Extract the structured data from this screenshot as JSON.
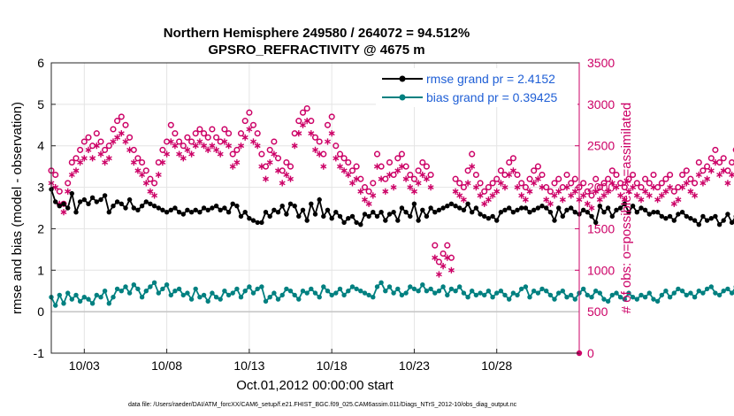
{
  "chart_data": {
    "type": "line",
    "title_line1": "Northern Hemisphere 249580 / 264072 = 94.512%",
    "title_line2": "GPSRO_REFRACTIVITY @ 4675 m",
    "xlabel": "Oct.01,2012 00:00:00 start",
    "ylabel": "rmse and bias (model - observation)",
    "ylabel_right": "# of obs: o=possible; ∗=assimilated",
    "footnote": "data file: /Users/raeder/DAI/ATM_forcXX/CAM6_setup/f.e21.FHIST_BGC.f09_025.CAM6assim.011/Diags_NTrS_2012-10/obs_diag_output.nc",
    "x_ticks": [
      "10/03",
      "10/08",
      "10/13",
      "10/18",
      "10/23",
      "10/28"
    ],
    "x_tick_days": [
      3,
      8,
      13,
      18,
      23,
      28
    ],
    "xlim_days": [
      1,
      33
    ],
    "ylim": [
      -1,
      6
    ],
    "y_ticks": [
      "-1",
      "0",
      "1",
      "2",
      "3",
      "4",
      "5",
      "6"
    ],
    "y_tick_values": [
      -1,
      0,
      1,
      2,
      3,
      4,
      5,
      6
    ],
    "ylim_right": [
      0,
      3500
    ],
    "y_ticks_right": [
      "0",
      "500",
      "1000",
      "1500",
      "2000",
      "2500",
      "3000",
      "3500"
    ],
    "y_tick_values_right": [
      0,
      500,
      1000,
      1500,
      2000,
      2500,
      3000,
      3500
    ],
    "grid": true,
    "legend_position": "top-right",
    "zero_line": 0,
    "x_start_day": 1.0,
    "x_step_days": 0.25,
    "series": [
      {
        "name": "rmse grand pr = 2.4152",
        "axis": "left",
        "color": "#000000",
        "marker": "circle",
        "values": [
          2.95,
          2.65,
          2.55,
          2.6,
          2.5,
          2.85,
          2.4,
          2.65,
          2.7,
          2.6,
          2.75,
          2.65,
          2.7,
          2.8,
          2.4,
          2.55,
          2.65,
          2.6,
          2.5,
          2.7,
          2.5,
          2.45,
          2.55,
          2.65,
          2.6,
          2.55,
          2.5,
          2.45,
          2.4,
          2.45,
          2.5,
          2.4,
          2.35,
          2.45,
          2.4,
          2.45,
          2.4,
          2.5,
          2.45,
          2.5,
          2.55,
          2.45,
          2.5,
          2.4,
          2.6,
          2.55,
          2.3,
          2.4,
          2.25,
          2.2,
          2.15,
          2.15,
          2.4,
          2.3,
          2.45,
          2.4,
          2.55,
          2.35,
          2.6,
          2.55,
          2.3,
          2.45,
          2.2,
          2.6,
          2.35,
          2.7,
          2.3,
          2.45,
          2.25,
          2.4,
          2.3,
          2.15,
          2.25,
          2.3,
          2.15,
          2.1,
          2.35,
          2.3,
          2.4,
          2.3,
          2.4,
          2.2,
          2.35,
          2.4,
          2.2,
          2.5,
          2.4,
          2.3,
          2.6,
          2.2,
          2.45,
          2.3,
          2.5,
          2.4,
          2.45,
          2.5,
          2.55,
          2.6,
          2.55,
          2.5,
          2.45,
          2.6,
          2.4,
          2.5,
          2.35,
          2.3,
          2.25,
          2.3,
          2.2,
          2.4,
          2.45,
          2.5,
          2.4,
          2.45,
          2.5,
          2.5,
          2.4,
          2.45,
          2.5,
          2.55,
          2.5,
          2.4,
          2.2,
          2.5,
          2.3,
          2.45,
          2.5,
          2.4,
          2.35,
          2.45,
          2.4,
          2.3,
          2.15,
          2.55,
          2.4,
          2.5,
          2.3,
          2.45,
          2.5,
          2.6,
          2.4,
          2.55,
          2.4,
          2.5,
          2.45,
          2.35,
          2.4,
          2.4,
          2.3,
          2.25,
          2.3,
          2.2,
          2.35,
          2.4,
          2.3,
          2.25,
          2.2,
          2.1,
          2.3,
          2.2,
          2.25,
          2.3,
          2.1,
          2.2,
          2.35,
          2.15,
          2.3,
          2.35,
          2.45,
          2.3,
          2.15,
          2.55,
          2.35,
          2.4,
          2.3,
          2.3,
          2.2,
          2.35,
          2.15,
          2.4,
          2.2,
          2.3,
          2.1,
          3.1,
          2.55,
          2.15,
          2.65,
          2.3,
          2.1
        ]
      },
      {
        "name": "bias grand pr = 0.39425",
        "axis": "left",
        "color": "#008080",
        "marker": "circle",
        "values": [
          0.35,
          0.15,
          0.4,
          0.2,
          0.45,
          0.3,
          0.4,
          0.25,
          0.35,
          0.3,
          0.2,
          0.4,
          0.35,
          0.5,
          0.2,
          0.35,
          0.55,
          0.5,
          0.6,
          0.45,
          0.65,
          0.55,
          0.35,
          0.5,
          0.6,
          0.7,
          0.45,
          0.55,
          0.65,
          0.4,
          0.5,
          0.55,
          0.4,
          0.45,
          0.3,
          0.55,
          0.35,
          0.4,
          0.25,
          0.45,
          0.35,
          0.3,
          0.5,
          0.4,
          0.45,
          0.55,
          0.35,
          0.5,
          0.6,
          0.45,
          0.55,
          0.6,
          0.25,
          0.35,
          0.45,
          0.3,
          0.4,
          0.55,
          0.5,
          0.4,
          0.3,
          0.5,
          0.45,
          0.55,
          0.45,
          0.35,
          0.6,
          0.5,
          0.4,
          0.45,
          0.55,
          0.4,
          0.5,
          0.6,
          0.55,
          0.5,
          0.45,
          0.4,
          0.35,
          0.6,
          0.7,
          0.5,
          0.6,
          0.45,
          0.55,
          0.4,
          0.45,
          0.6,
          0.55,
          0.5,
          0.65,
          0.5,
          0.55,
          0.45,
          0.5,
          0.6,
          0.4,
          0.55,
          0.5,
          0.6,
          0.45,
          0.35,
          0.5,
          0.4,
          0.45,
          0.4,
          0.5,
          0.35,
          0.45,
          0.5,
          0.4,
          0.3,
          0.45,
          0.4,
          0.55,
          0.6,
          0.35,
          0.5,
          0.45,
          0.55,
          0.5,
          0.4,
          0.3,
          0.45,
          0.5,
          0.35,
          0.4,
          0.3,
          0.45,
          0.55,
          0.4,
          0.35,
          0.5,
          0.45,
          0.3,
          0.25,
          0.4,
          0.45,
          0.35,
          0.3,
          0.45,
          0.35,
          0.3,
          0.4,
          0.35,
          0.45,
          0.3,
          0.25,
          0.4,
          0.5,
          0.35,
          0.45,
          0.55,
          0.5,
          0.4,
          0.45,
          0.35,
          0.5,
          0.45,
          0.55,
          0.6,
          0.45,
          0.4,
          0.5,
          0.55,
          0.45,
          0.6,
          0.5,
          0.45,
          0.55,
          0.6,
          0.4,
          0.5,
          0.55,
          0.45,
          0.5,
          0.6,
          0.55,
          0.4,
          0.5,
          0.45,
          0.55,
          0.6
        ]
      },
      {
        "name": "possible",
        "axis": "right",
        "color": "#cc0066",
        "marker": "open-circle",
        "values": [
          2200,
          2150,
          1950,
          1800,
          2050,
          2300,
          2350,
          2450,
          2550,
          2600,
          2500,
          2650,
          2550,
          2450,
          2500,
          2700,
          2800,
          2850,
          2750,
          2600,
          2450,
          2350,
          2300,
          2200,
          2100,
          2050,
          2300,
          2450,
          2550,
          2750,
          2650,
          2550,
          2500,
          2600,
          2550,
          2650,
          2700,
          2650,
          2600,
          2700,
          2600,
          2550,
          2700,
          2650,
          2400,
          2450,
          2650,
          2800,
          2900,
          2750,
          2650,
          2400,
          2250,
          2450,
          2550,
          2350,
          2200,
          2300,
          2250,
          2650,
          2800,
          2900,
          2950,
          2800,
          2600,
          2550,
          2400,
          2750,
          2850,
          2500,
          2400,
          2350,
          2300,
          2200,
          2250,
          2100,
          2000,
          1950,
          2050,
          2400,
          2250,
          2100,
          2300,
          2150,
          2350,
          2400,
          2250,
          2150,
          2100,
          2200,
          2300,
          2250,
          2150,
          1300,
          1100,
          1200,
          1300,
          1150,
          2100,
          2050,
          2000,
          2200,
          2400,
          2150,
          2050,
          1950,
          2000,
          2050,
          2100,
          2200,
          2150,
          2300,
          2350,
          2150,
          2050,
          2000,
          2100,
          2200,
          2250,
          2150,
          2000,
          1950,
          2050,
          2100,
          2000,
          2150,
          2050,
          2100,
          2000,
          2050,
          1950,
          1900,
          2100,
          2000,
          2050,
          2100,
          2200,
          2150,
          2050,
          2000,
          2100,
          2150,
          2050,
          2000,
          2100,
          2050,
          2150,
          2000,
          2050,
          2100,
          2150,
          1950,
          2000,
          2150,
          2200,
          2100,
          2050,
          2300,
          2200,
          2250,
          2350,
          2450,
          2300,
          2350,
          2200,
          2300,
          2450,
          2550,
          2600,
          2650,
          2500,
          2450,
          2600,
          2650,
          2550,
          2700,
          2750,
          2900,
          2850,
          2700,
          2600,
          2800,
          2750,
          2650,
          2600,
          2700
        ]
      },
      {
        "name": "assimilated",
        "axis": "right",
        "color": "#cc0066",
        "marker": "asterisk",
        "values": [
          2050,
          2000,
          1800,
          1700,
          1950,
          2150,
          2200,
          2300,
          2350,
          2450,
          2350,
          2500,
          2400,
          2300,
          2350,
          2550,
          2600,
          2650,
          2550,
          2450,
          2300,
          2200,
          2150,
          2050,
          1950,
          1900,
          2150,
          2300,
          2400,
          2550,
          2500,
          2400,
          2350,
          2450,
          2400,
          2500,
          2550,
          2500,
          2450,
          2500,
          2450,
          2400,
          2550,
          2500,
          2250,
          2300,
          2500,
          2600,
          2700,
          2550,
          2500,
          2250,
          2100,
          2300,
          2400,
          2200,
          2050,
          2150,
          2100,
          2500,
          2650,
          2750,
          2800,
          2650,
          2450,
          2400,
          2250,
          2550,
          2650,
          2350,
          2250,
          2200,
          2150,
          2050,
          2100,
          1950,
          1850,
          1800,
          1900,
          2250,
          2100,
          1950,
          2150,
          2000,
          2200,
          2250,
          2100,
          2000,
          1950,
          2050,
          2150,
          2100,
          2000,
          1150,
          950,
          1050,
          1150,
          1000,
          1950,
          1900,
          1850,
          2050,
          2250,
          2000,
          1900,
          1800,
          1850,
          1900,
          1950,
          2050,
          2000,
          2150,
          2200,
          2000,
          1900,
          1850,
          1950,
          2050,
          2100,
          2000,
          1850,
          1800,
          1900,
          1950,
          1850,
          2000,
          1900,
          1950,
          1850,
          1900,
          1800,
          1750,
          1950,
          1850,
          1900,
          1950,
          2050,
          2000,
          1900,
          1850,
          1950,
          2000,
          1900,
          1850,
          1950,
          1900,
          2000,
          1850,
          1900,
          1950,
          2000,
          1800,
          1850,
          2000,
          2050,
          1950,
          1900,
          2150,
          2050,
          2100,
          2200,
          2300,
          2150,
          2200,
          2050,
          2150,
          2300,
          2400,
          2450,
          2500,
          2350,
          2300,
          2450,
          2500,
          2400,
          2550,
          2600,
          2750,
          2700,
          2550,
          2450,
          2650,
          2600,
          2500,
          2450,
          2550
        ]
      }
    ]
  }
}
